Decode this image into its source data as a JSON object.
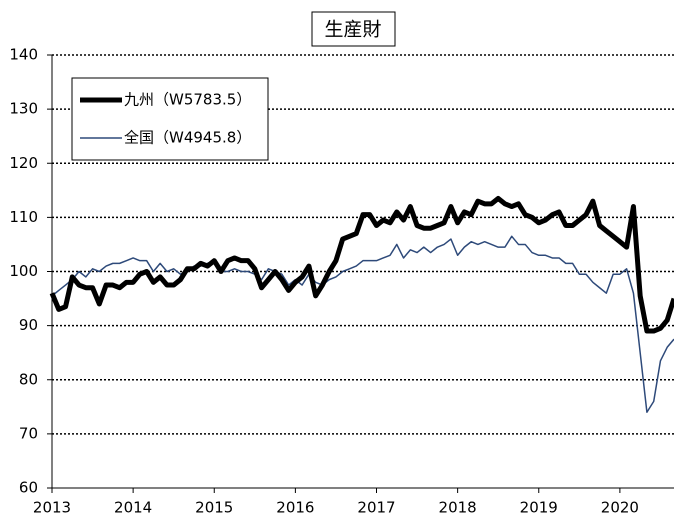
{
  "chart_data": {
    "type": "line",
    "title": "生産財",
    "x": [
      2013,
      2013.083,
      2013.167,
      2013.25,
      2013.333,
      2013.417,
      2013.5,
      2013.583,
      2013.667,
      2013.75,
      2013.833,
      2013.917,
      2014,
      2014.083,
      2014.167,
      2014.25,
      2014.333,
      2014.417,
      2014.5,
      2014.583,
      2014.667,
      2014.75,
      2014.833,
      2014.917,
      2015,
      2015.083,
      2015.167,
      2015.25,
      2015.333,
      2015.417,
      2015.5,
      2015.583,
      2015.667,
      2015.75,
      2015.833,
      2015.917,
      2016,
      2016.083,
      2016.167,
      2016.25,
      2016.333,
      2016.417,
      2016.5,
      2016.583,
      2016.667,
      2016.75,
      2016.833,
      2016.917,
      2017,
      2017.083,
      2017.167,
      2017.25,
      2017.333,
      2017.417,
      2017.5,
      2017.583,
      2017.667,
      2017.75,
      2017.833,
      2017.917,
      2018,
      2018.083,
      2018.167,
      2018.25,
      2018.333,
      2018.417,
      2018.5,
      2018.583,
      2018.667,
      2018.75,
      2018.833,
      2018.917,
      2019,
      2019.083,
      2019.167,
      2019.25,
      2019.333,
      2019.417,
      2019.5,
      2019.583,
      2019.667,
      2019.75,
      2019.833,
      2019.917,
      2020,
      2020.083,
      2020.167,
      2020.25,
      2020.333,
      2020.417,
      2020.5,
      2020.583,
      2020.667
    ],
    "series": [
      {
        "name": "九州（W5783.5）",
        "color": "#000000",
        "width": 5,
        "values": [
          96,
          93,
          93.5,
          99,
          97.5,
          97,
          97,
          94,
          97.5,
          97.5,
          97,
          98,
          98,
          99.5,
          100,
          98,
          99,
          97.5,
          97.5,
          98.5,
          100.5,
          100.5,
          101.5,
          101,
          102,
          100,
          102,
          102.5,
          102,
          102,
          100.5,
          97,
          98.5,
          100,
          98.5,
          96.5,
          98,
          99,
          101,
          95.5,
          97.5,
          100,
          102,
          106,
          106.5,
          107,
          110.5,
          110.5,
          108.5,
          109.5,
          109,
          111,
          109.5,
          112,
          108.5,
          108,
          108,
          108.5,
          109,
          112,
          109,
          111,
          110.5,
          113,
          112.5,
          112.5,
          113.5,
          112.5,
          112,
          112.5,
          110.5,
          110,
          109,
          109.5,
          110.5,
          111,
          108.5,
          108.5,
          109.5,
          110.5,
          113,
          108.5,
          107.5,
          106.5,
          105.5,
          104.5,
          112,
          95.5,
          89,
          89,
          89.5,
          91,
          95
        ]
      },
      {
        "name": "全国（W4945.8）",
        "color": "#2e4a7a",
        "width": 1.5,
        "values": [
          95.5,
          96.5,
          97.5,
          98.5,
          100,
          99,
          100.5,
          100,
          101,
          101.5,
          101.5,
          102,
          102.5,
          102,
          102,
          100,
          101.5,
          100,
          100.5,
          99.5,
          100,
          101,
          101,
          101.5,
          102,
          100,
          100,
          100.5,
          100,
          100,
          99.5,
          98.5,
          100.5,
          100,
          99.5,
          97.5,
          98.5,
          97.5,
          99.5,
          98,
          97.5,
          98.5,
          99,
          100,
          100.5,
          101,
          102,
          102,
          102,
          102.5,
          103,
          105,
          102.5,
          104,
          103.5,
          104.5,
          103.5,
          104.5,
          105,
          106,
          103,
          104.5,
          105.5,
          105,
          105.5,
          105,
          104.5,
          104.5,
          106.5,
          105,
          105,
          103.5,
          103,
          103,
          102.5,
          102.5,
          101.5,
          101.5,
          99.5,
          99.5,
          98,
          97,
          96,
          99.5,
          99.5,
          100.5,
          96,
          85,
          74,
          76,
          83.5,
          86,
          87.5
        ]
      }
    ],
    "xlim": [
      2013,
      2020.667
    ],
    "xticks": [
      2013,
      2014,
      2015,
      2016,
      2017,
      2018,
      2019,
      2020
    ],
    "ylim": [
      60,
      140
    ],
    "yticks": [
      60,
      70,
      80,
      90,
      100,
      110,
      120,
      130,
      140
    ],
    "grid": true
  }
}
